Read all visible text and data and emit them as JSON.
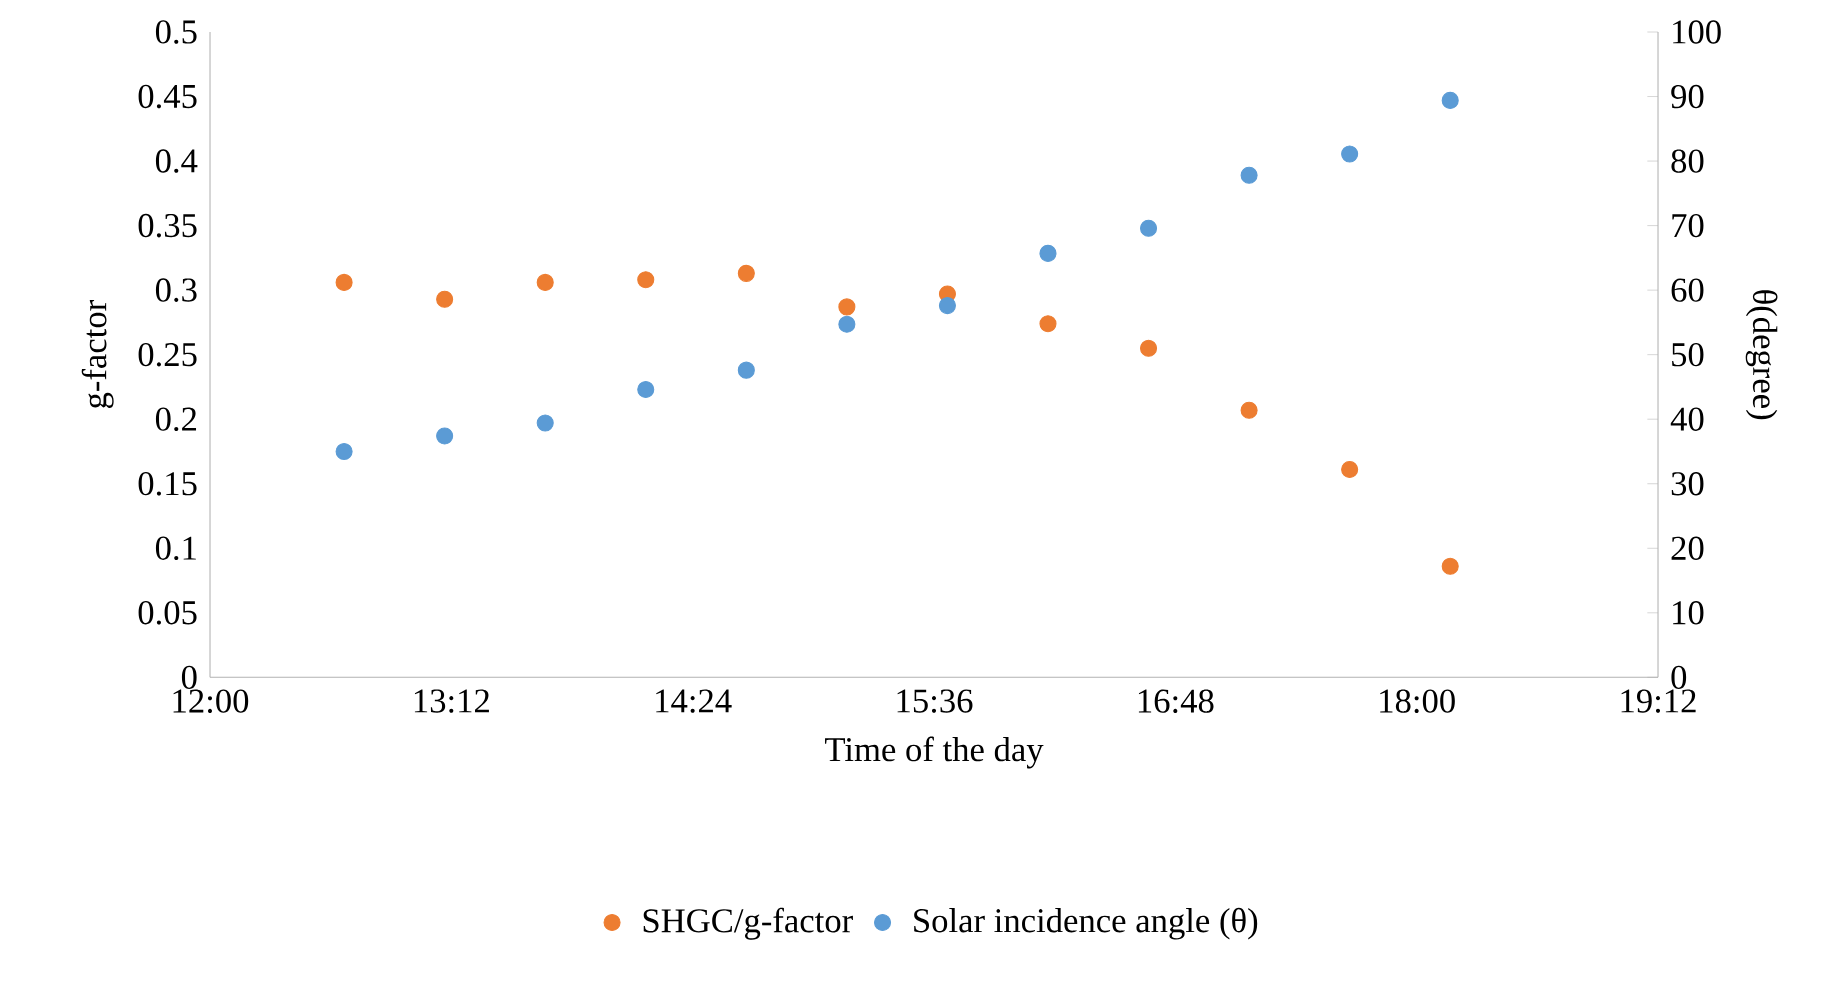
{
  "chart_data": {
    "type": "scatter",
    "xlabel": "Time of the day",
    "ylabel": "g-factor",
    "y2label": "θ(degree)",
    "x": [
      12.6667,
      13.1667,
      13.6667,
      14.1667,
      14.6667,
      15.1667,
      15.6667,
      16.1667,
      16.6667,
      17.1667,
      17.6667,
      18.1667
    ],
    "series": [
      {
        "name": "SHGC/g-factor",
        "color": "#ed7d31",
        "values": [
          0.306,
          0.293,
          0.306,
          0.308,
          0.313,
          0.287,
          0.297,
          0.274,
          0.255,
          0.207,
          0.161,
          0.086
        ]
      },
      {
        "name": "Solar incidence angle (θ)",
        "color": "#5b9bd5",
        "axis": "y2",
        "values": [
          35.0,
          37.4,
          39.4,
          44.6,
          47.6,
          54.7,
          57.6,
          65.7,
          69.6,
          77.8,
          81.1,
          89.4
        ]
      }
    ],
    "xlim": [
      12,
      19.2
    ],
    "xticks": [
      {
        "value": 12,
        "label": "12:00"
      },
      {
        "value": 13.2,
        "label": "13:12"
      },
      {
        "value": 14.4,
        "label": "14:24"
      },
      {
        "value": 15.6,
        "label": "15:36"
      },
      {
        "value": 16.8,
        "label": "16:48"
      },
      {
        "value": 18,
        "label": "18:00"
      },
      {
        "value": 19.2,
        "label": "19:12"
      }
    ],
    "ylim": [
      0,
      0.5
    ],
    "yticks": [
      0,
      0.05,
      0.1,
      0.15,
      0.2,
      0.25,
      0.3,
      0.35,
      0.4,
      0.45,
      0.5
    ],
    "y2lim": [
      0,
      100
    ],
    "y2ticks": [
      0,
      10,
      20,
      30,
      40,
      50,
      60,
      70,
      80,
      90,
      100
    ],
    "marker": "circle",
    "legend": "bottom"
  }
}
